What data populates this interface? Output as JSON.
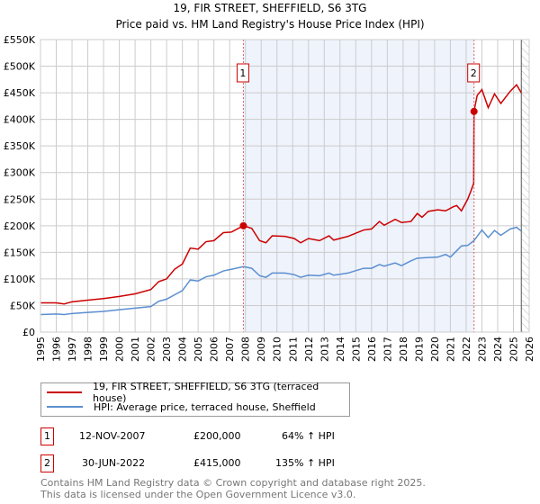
{
  "title": "19, FIR STREET, SHEFFIELD, S6 3TG",
  "subtitle": "Price paid vs. HM Land Registry's House Price Index (HPI)",
  "legend": [
    {
      "label": "19, FIR STREET, SHEFFIELD, S6 3TG (terraced house)",
      "color": "#cc0000"
    },
    {
      "label": "HPI: Average price, terraced house, Sheffield",
      "color": "#5b8fd0"
    }
  ],
  "sales": [
    {
      "id": "1",
      "date": "12-NOV-2007",
      "price": "£200,000",
      "hpi": "64% ↑ HPI"
    },
    {
      "id": "2",
      "date": "30-JUN-2022",
      "price": "£415,000",
      "hpi": "135% ↑ HPI"
    }
  ],
  "footer": {
    "line1": "Contains HM Land Registry data © Crown copyright and database right 2025.",
    "line2": "This data is licensed under the Open Government Licence v3.0."
  },
  "chart_data": {
    "type": "line",
    "title": "19, FIR STREET, SHEFFIELD, S6 3TG",
    "subtitle": "Price paid vs. HM Land Registry's House Price Index (HPI)",
    "xlim": [
      1995,
      2026
    ],
    "ylim": [
      0,
      550000
    ],
    "x_ticks": [
      "1995",
      "1996",
      "1997",
      "1998",
      "1999",
      "2000",
      "2001",
      "2002",
      "2003",
      "2004",
      "2005",
      "2006",
      "2007",
      "2008",
      "2009",
      "2010",
      "2011",
      "2012",
      "2013",
      "2014",
      "2015",
      "2016",
      "2017",
      "2018",
      "2019",
      "2020",
      "2021",
      "2022",
      "2023",
      "2024",
      "2025",
      "2026"
    ],
    "y_ticks": [
      {
        "v": 0,
        "label": "£0"
      },
      {
        "v": 50000,
        "label": "£50K"
      },
      {
        "v": 100000,
        "label": "£100K"
      },
      {
        "v": 150000,
        "label": "£150K"
      },
      {
        "v": 200000,
        "label": "£200K"
      },
      {
        "v": 250000,
        "label": "£250K"
      },
      {
        "v": 300000,
        "label": "£300K"
      },
      {
        "v": 350000,
        "label": "£350K"
      },
      {
        "v": 400000,
        "label": "£400K"
      },
      {
        "v": 450000,
        "label": "£450K"
      },
      {
        "v": 500000,
        "label": "£500K"
      },
      {
        "v": 550000,
        "label": "£550K"
      }
    ],
    "grid": true,
    "shaded_range": [
      2007.87,
      2022.5
    ],
    "hatched_from": 2025.5,
    "markers": [
      {
        "label": "1",
        "x": 2007.87,
        "y": 200000
      },
      {
        "label": "2",
        "x": 2022.5,
        "y": 415000
      }
    ],
    "series": [
      {
        "name": "19, FIR STREET, SHEFFIELD, S6 3TG (terraced house)",
        "color": "#cc0000",
        "points": [
          [
            1995,
            55000
          ],
          [
            1996,
            55000
          ],
          [
            1996.5,
            53000
          ],
          [
            1997,
            57000
          ],
          [
            1998,
            60000
          ],
          [
            1999,
            63000
          ],
          [
            2000,
            67000
          ],
          [
            2001,
            72000
          ],
          [
            2002,
            80000
          ],
          [
            2002.5,
            95000
          ],
          [
            2003,
            100000
          ],
          [
            2003.5,
            118000
          ],
          [
            2004,
            128000
          ],
          [
            2004.5,
            158000
          ],
          [
            2005,
            156000
          ],
          [
            2005.5,
            170000
          ],
          [
            2006,
            172000
          ],
          [
            2006.6,
            187000
          ],
          [
            2007.1,
            188000
          ],
          [
            2007.87,
            200000
          ],
          [
            2008.4,
            195000
          ],
          [
            2008.9,
            172000
          ],
          [
            2009.3,
            168000
          ],
          [
            2009.7,
            181000
          ],
          [
            2010.5,
            180000
          ],
          [
            2011.1,
            176000
          ],
          [
            2011.5,
            168000
          ],
          [
            2012,
            176000
          ],
          [
            2012.7,
            172000
          ],
          [
            2013.3,
            181000
          ],
          [
            2013.6,
            173000
          ],
          [
            2014.5,
            180000
          ],
          [
            2015.5,
            192000
          ],
          [
            2016,
            194000
          ],
          [
            2016.5,
            208000
          ],
          [
            2016.8,
            201000
          ],
          [
            2017.5,
            212000
          ],
          [
            2017.9,
            206000
          ],
          [
            2018.5,
            208000
          ],
          [
            2018.9,
            223000
          ],
          [
            2019.2,
            216000
          ],
          [
            2019.6,
            227000
          ],
          [
            2020.2,
            230000
          ],
          [
            2020.7,
            228000
          ],
          [
            2021.2,
            236000
          ],
          [
            2021.4,
            238000
          ],
          [
            2021.7,
            228000
          ],
          [
            2022.1,
            250000
          ],
          [
            2022.3,
            265000
          ],
          [
            2022.48,
            280000
          ],
          [
            2022.5,
            415000
          ],
          [
            2022.7,
            445000
          ],
          [
            2023,
            456000
          ],
          [
            2023.4,
            422000
          ],
          [
            2023.8,
            448000
          ],
          [
            2024.2,
            430000
          ],
          [
            2024.8,
            453000
          ],
          [
            2025.2,
            465000
          ],
          [
            2025.5,
            450000
          ]
        ]
      },
      {
        "name": "HPI: Average price, terraced house, Sheffield",
        "color": "#5b8fd0",
        "points": [
          [
            1995,
            33000
          ],
          [
            1996,
            34000
          ],
          [
            1996.5,
            33000
          ],
          [
            1997,
            35000
          ],
          [
            1998,
            37000
          ],
          [
            1999,
            39000
          ],
          [
            2000,
            42000
          ],
          [
            2001,
            45000
          ],
          [
            2002,
            48000
          ],
          [
            2002.5,
            58000
          ],
          [
            2003,
            62000
          ],
          [
            2003.5,
            70000
          ],
          [
            2004,
            78000
          ],
          [
            2004.5,
            98000
          ],
          [
            2005,
            96000
          ],
          [
            2005.5,
            104000
          ],
          [
            2006,
            107000
          ],
          [
            2006.6,
            115000
          ],
          [
            2007.1,
            118000
          ],
          [
            2007.87,
            123000
          ],
          [
            2008.4,
            120000
          ],
          [
            2008.9,
            106000
          ],
          [
            2009.3,
            103000
          ],
          [
            2009.7,
            111000
          ],
          [
            2010.5,
            111000
          ],
          [
            2011.1,
            108000
          ],
          [
            2011.5,
            103000
          ],
          [
            2012,
            107000
          ],
          [
            2012.7,
            106000
          ],
          [
            2013.3,
            111000
          ],
          [
            2013.6,
            107000
          ],
          [
            2014.5,
            111000
          ],
          [
            2015.5,
            120000
          ],
          [
            2016,
            120000
          ],
          [
            2016.5,
            127000
          ],
          [
            2016.8,
            124000
          ],
          [
            2017.5,
            130000
          ],
          [
            2017.9,
            125000
          ],
          [
            2018.5,
            134000
          ],
          [
            2018.9,
            139000
          ],
          [
            2019.5,
            140000
          ],
          [
            2020.2,
            141000
          ],
          [
            2020.7,
            146000
          ],
          [
            2021,
            141000
          ],
          [
            2021.7,
            162000
          ],
          [
            2022.1,
            163000
          ],
          [
            2022.5,
            172000
          ],
          [
            2023,
            192000
          ],
          [
            2023.4,
            178000
          ],
          [
            2023.8,
            191000
          ],
          [
            2024.2,
            182000
          ],
          [
            2024.8,
            194000
          ],
          [
            2025.2,
            197000
          ],
          [
            2025.5,
            190000
          ]
        ]
      }
    ]
  }
}
